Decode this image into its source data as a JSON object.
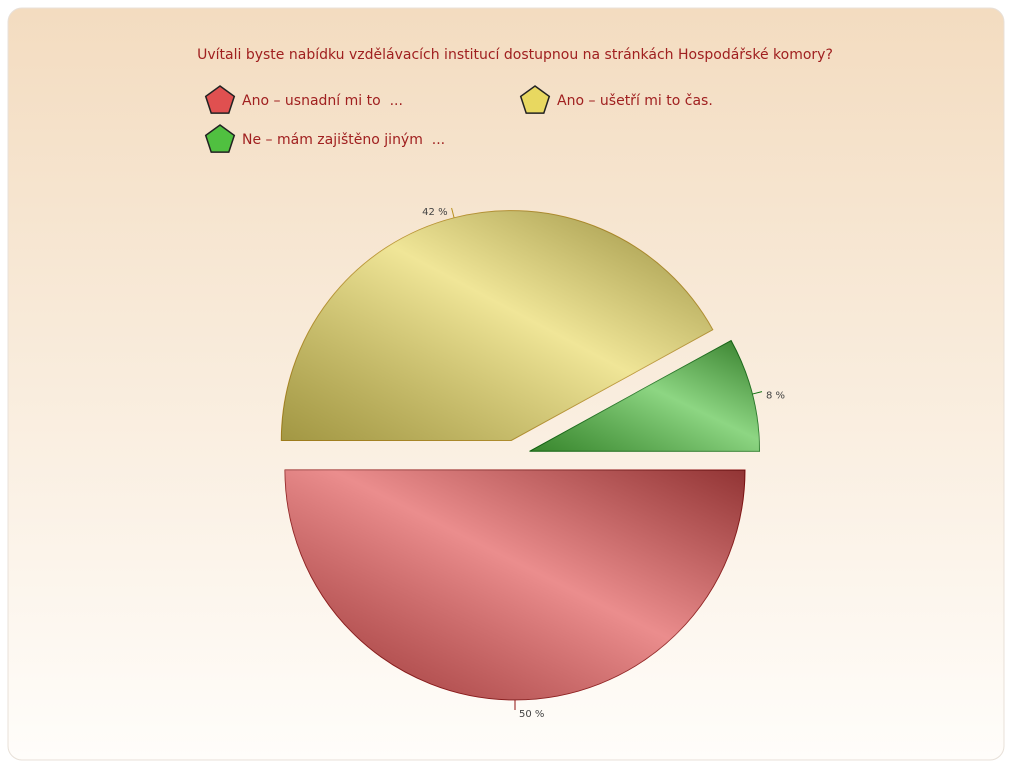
{
  "chart_data": {
    "type": "pie",
    "title": "Uvítali byste nabídku vzdělávacích institucí dostupnou na stránkách Hospodářské komory?",
    "categories": [
      "Ano – usnadní mi to  ...",
      "Ano – ušetří mi to čas.",
      "Ne – mám zajištěno jiným  ..."
    ],
    "values": [
      50,
      42,
      8
    ],
    "value_labels": [
      "50 %",
      "42 %",
      "8 %"
    ],
    "colors": [
      "#e05050",
      "#e8d860",
      "#50c040"
    ]
  }
}
